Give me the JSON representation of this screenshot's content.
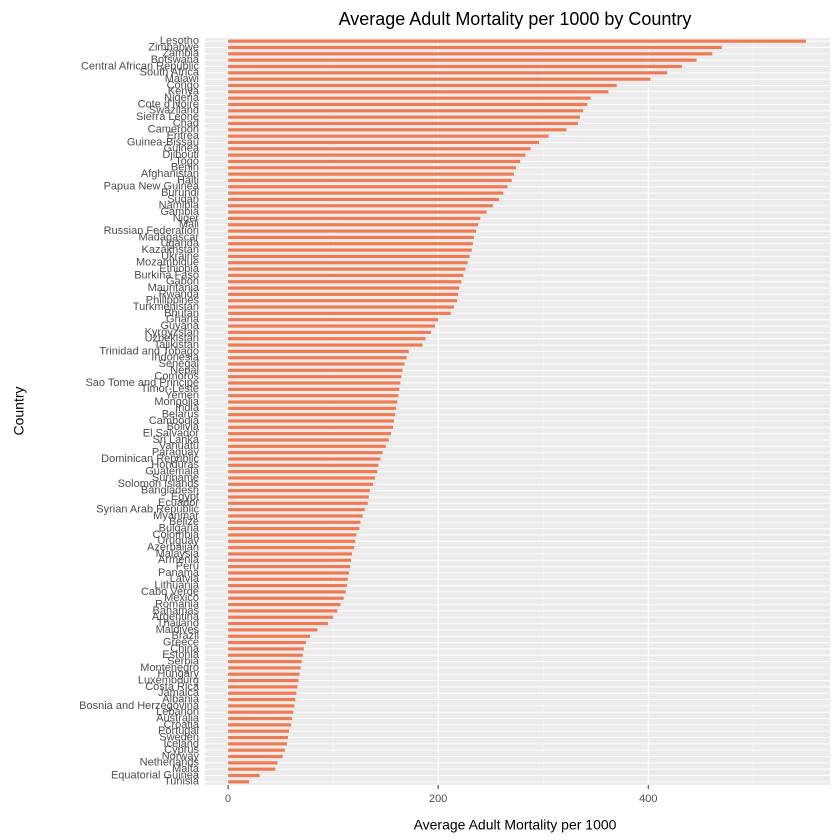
{
  "chart_data": {
    "type": "barh",
    "title": "Average Adult Mortality per 1000 by Country",
    "xlabel": "Average Adult Mortality per 1000",
    "ylabel": "Country",
    "color": "#f07b52",
    "grid": true,
    "xlim": [
      -22,
      573
    ],
    "xticks": [
      0,
      200,
      400
    ],
    "categories": [
      "Lesotho",
      "Zimbabwe",
      "Zambia",
      "Botswana",
      "Central African Republic",
      "South Africa",
      "Malawi",
      "Congo",
      "Kenya",
      "Nigeria",
      "Cote d'Ivoire",
      "Swaziland",
      "Sierra Leone",
      "Chad",
      "Cameroon",
      "Eritrea",
      "Guinea-Bissau",
      "Guinea",
      "Djibouti",
      "Togo",
      "Benin",
      "Afghanistan",
      "Haiti",
      "Papua New Guinea",
      "Burundi",
      "Sudan",
      "Namibia",
      "Gambia",
      "Niger",
      "Mali",
      "Russian Federation",
      "Madagascar",
      "Uganda",
      "Kazakhstan",
      "Ukraine",
      "Mozambique",
      "Ethiopia",
      "Burkina Faso",
      "Gabon",
      "Mauritania",
      "Rwanda",
      "Philippines",
      "Turkmenistan",
      "Bhutan",
      "Ghana",
      "Guyana",
      "Kyrgyzstan",
      "Uzbekistan",
      "Tajikistan",
      "Trinidad and Tobago",
      "Indonesia",
      "Senegal",
      "Nepal",
      "Comoros",
      "Sao Tome and Principe",
      "Timor-Leste",
      "Yemen",
      "Mongolia",
      "India",
      "Belarus",
      "Cambodia",
      "Bolivia",
      "El Salvador",
      "Sri Lanka",
      "Vanuatu",
      "Paraguay",
      "Dominican Republic",
      "Honduras",
      "Guatemala",
      "Suriname",
      "Solomon Islands",
      "Bangladesh",
      "Egypt",
      "Ecuador",
      "Syrian Arab Republic",
      "Myanmar",
      "Belize",
      "Bulgaria",
      "Colombia",
      "Uruguay",
      "Azerbaijan",
      "Malaysia",
      "Armenia",
      "Peru",
      "Panama",
      "Latvia",
      "Lithuania",
      "Cabo Verde",
      "Mexico",
      "Romania",
      "Bahamas",
      "Argentina",
      "Thailand",
      "Maldives",
      "Brazil",
      "Greece",
      "China",
      "Estonia",
      "Serbia",
      "Montenegro",
      "Hungary",
      "Luxembourg",
      "Costa Rica",
      "Jamaica",
      "Albania",
      "Bosnia and Herzegovina",
      "Lebanon",
      "Australia",
      "Croatia",
      "Portugal",
      "Sweden",
      "Iceland",
      "Cyprus",
      "Norway",
      "Netherlands",
      "Malta",
      "Equatorial Guinea",
      "Tunisia"
    ],
    "values": [
      550,
      470,
      461,
      446,
      432,
      418,
      402,
      370,
      362,
      345,
      342,
      338,
      335,
      333,
      322,
      305,
      296,
      288,
      283,
      278,
      274,
      272,
      270,
      266,
      262,
      258,
      252,
      246,
      240,
      238,
      236,
      234,
      233,
      232,
      230,
      228,
      226,
      224,
      222,
      220,
      219,
      218,
      215,
      212,
      200,
      197,
      193,
      188,
      185,
      172,
      170,
      168,
      166,
      165,
      164,
      163,
      162,
      161,
      160,
      159,
      158,
      157,
      155,
      153,
      150,
      147,
      145,
      143,
      142,
      140,
      138,
      135,
      134,
      133,
      130,
      128,
      126,
      125,
      122,
      121,
      120,
      118,
      117,
      116,
      115,
      114,
      113,
      112,
      110,
      107,
      104,
      100,
      95,
      85,
      78,
      74,
      72,
      71,
      70,
      69,
      68,
      67,
      66,
      65,
      64,
      63,
      62,
      61,
      60,
      58,
      57,
      56,
      54,
      52,
      47,
      45,
      30,
      20
    ]
  }
}
